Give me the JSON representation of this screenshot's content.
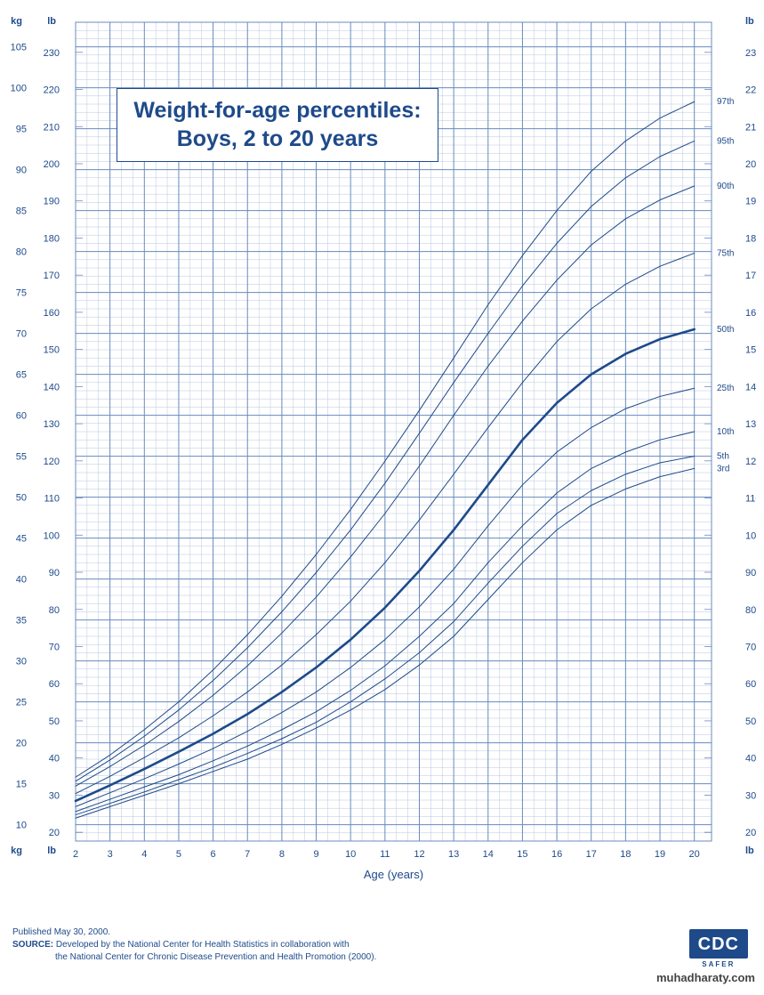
{
  "title_line1": "Weight-for-age percentiles:",
  "title_line2": "Boys, 2 to 20 years",
  "xlabel": "Age (years)",
  "axis_left_kg": "kg",
  "axis_left_lb": "lb",
  "axis_right_kg": "kg",
  "axis_right_lb": "lb",
  "line_color": "#1e4a8a",
  "grid_color_minor": "#b8c7de",
  "grid_color_major": "#6a8bbf",
  "background": "#ffffff",
  "xlim": [
    2,
    20.5
  ],
  "x_ticks": [
    2,
    3,
    4,
    5,
    6,
    7,
    8,
    9,
    10,
    11,
    12,
    13,
    14,
    15,
    16,
    17,
    18,
    19,
    20
  ],
  "kg_lim": [
    8,
    108
  ],
  "kg_ticks": [
    10,
    15,
    20,
    25,
    30,
    35,
    40,
    45,
    50,
    55,
    60,
    65,
    70,
    75,
    80,
    85,
    90,
    95,
    100,
    105
  ],
  "lb_ticks": [
    20,
    30,
    40,
    50,
    60,
    70,
    80,
    90,
    100,
    110,
    120,
    130,
    140,
    150,
    160,
    170,
    180,
    190,
    200,
    210,
    220,
    230
  ],
  "lb_per_kg": 2.2046,
  "label_fontsize": 11,
  "axislabel_fontsize": 13,
  "unit_fontsize": 11,
  "percentile_label_fontsize": 10,
  "median_line_width": 2.6,
  "other_line_width": 1.0,
  "percentiles": [
    {
      "label": "3rd",
      "data": [
        [
          2,
          10.8
        ],
        [
          3,
          12.2
        ],
        [
          4,
          13.6
        ],
        [
          5,
          15.0
        ],
        [
          6,
          16.5
        ],
        [
          7,
          18.0
        ],
        [
          8,
          19.8
        ],
        [
          9,
          21.8
        ],
        [
          10,
          24.0
        ],
        [
          11,
          26.5
        ],
        [
          12,
          29.5
        ],
        [
          13,
          33.0
        ],
        [
          14,
          37.5
        ],
        [
          15,
          42.0
        ],
        [
          16,
          46.0
        ],
        [
          17,
          49.0
        ],
        [
          18,
          51.0
        ],
        [
          19,
          52.5
        ],
        [
          20,
          53.5
        ]
      ]
    },
    {
      "label": "5th",
      "data": [
        [
          2,
          11.2
        ],
        [
          3,
          12.6
        ],
        [
          4,
          14.0
        ],
        [
          5,
          15.5
        ],
        [
          6,
          17.0
        ],
        [
          7,
          18.7
        ],
        [
          8,
          20.5
        ],
        [
          9,
          22.5
        ],
        [
          10,
          25.0
        ],
        [
          11,
          27.8
        ],
        [
          12,
          31.0
        ],
        [
          13,
          34.8
        ],
        [
          14,
          39.5
        ],
        [
          15,
          44.0
        ],
        [
          16,
          48.0
        ],
        [
          17,
          50.8
        ],
        [
          18,
          52.8
        ],
        [
          19,
          54.2
        ],
        [
          20,
          55.0
        ]
      ]
    },
    {
      "label": "10th",
      "data": [
        [
          2,
          11.6
        ],
        [
          3,
          13.1
        ],
        [
          4,
          14.6
        ],
        [
          5,
          16.1
        ],
        [
          6,
          17.8
        ],
        [
          7,
          19.6
        ],
        [
          8,
          21.6
        ],
        [
          9,
          23.8
        ],
        [
          10,
          26.4
        ],
        [
          11,
          29.4
        ],
        [
          12,
          33.0
        ],
        [
          13,
          37.0
        ],
        [
          14,
          42.0
        ],
        [
          15,
          46.5
        ],
        [
          16,
          50.5
        ],
        [
          17,
          53.5
        ],
        [
          18,
          55.5
        ],
        [
          19,
          57.0
        ],
        [
          20,
          58.0
        ]
      ]
    },
    {
      "label": "25th",
      "data": [
        [
          2,
          12.2
        ],
        [
          3,
          13.9
        ],
        [
          4,
          15.6
        ],
        [
          5,
          17.4
        ],
        [
          6,
          19.3
        ],
        [
          7,
          21.4
        ],
        [
          8,
          23.7
        ],
        [
          9,
          26.2
        ],
        [
          10,
          29.2
        ],
        [
          11,
          32.6
        ],
        [
          12,
          36.6
        ],
        [
          13,
          41.2
        ],
        [
          14,
          46.5
        ],
        [
          15,
          51.5
        ],
        [
          16,
          55.5
        ],
        [
          17,
          58.5
        ],
        [
          18,
          60.8
        ],
        [
          19,
          62.3
        ],
        [
          20,
          63.3
        ]
      ]
    },
    {
      "label": "50th",
      "data": [
        [
          2,
          12.9
        ],
        [
          3,
          14.8
        ],
        [
          4,
          16.8
        ],
        [
          5,
          18.9
        ],
        [
          6,
          21.1
        ],
        [
          7,
          23.5
        ],
        [
          8,
          26.2
        ],
        [
          9,
          29.2
        ],
        [
          10,
          32.6
        ],
        [
          11,
          36.5
        ],
        [
          12,
          41.0
        ],
        [
          13,
          46.0
        ],
        [
          14,
          51.5
        ],
        [
          15,
          57.0
        ],
        [
          16,
          61.5
        ],
        [
          17,
          65.0
        ],
        [
          18,
          67.5
        ],
        [
          19,
          69.3
        ],
        [
          20,
          70.5
        ]
      ]
    },
    {
      "label": "75th",
      "data": [
        [
          2,
          13.8
        ],
        [
          3,
          15.9
        ],
        [
          4,
          18.2
        ],
        [
          5,
          20.6
        ],
        [
          6,
          23.3
        ],
        [
          7,
          26.2
        ],
        [
          8,
          29.5
        ],
        [
          9,
          33.2
        ],
        [
          10,
          37.3
        ],
        [
          11,
          42.0
        ],
        [
          12,
          47.2
        ],
        [
          13,
          52.8
        ],
        [
          14,
          58.5
        ],
        [
          15,
          64.0
        ],
        [
          16,
          69.0
        ],
        [
          17,
          73.0
        ],
        [
          18,
          76.0
        ],
        [
          19,
          78.2
        ],
        [
          20,
          79.8
        ]
      ]
    },
    {
      "label": "90th",
      "data": [
        [
          2,
          14.7
        ],
        [
          3,
          17.1
        ],
        [
          4,
          19.7
        ],
        [
          5,
          22.6
        ],
        [
          6,
          25.8
        ],
        [
          7,
          29.4
        ],
        [
          8,
          33.4
        ],
        [
          9,
          37.8
        ],
        [
          10,
          42.7
        ],
        [
          11,
          48.0
        ],
        [
          12,
          53.8
        ],
        [
          13,
          60.0
        ],
        [
          14,
          66.0
        ],
        [
          15,
          71.5
        ],
        [
          16,
          76.5
        ],
        [
          17,
          80.8
        ],
        [
          18,
          84.0
        ],
        [
          19,
          86.3
        ],
        [
          20,
          88.0
        ]
      ]
    },
    {
      "label": "95th",
      "data": [
        [
          2,
          15.3
        ],
        [
          3,
          17.9
        ],
        [
          4,
          20.8
        ],
        [
          5,
          24.0
        ],
        [
          6,
          27.6
        ],
        [
          7,
          31.6
        ],
        [
          8,
          36.0
        ],
        [
          9,
          40.8
        ],
        [
          10,
          46.0
        ],
        [
          11,
          51.7
        ],
        [
          12,
          57.8
        ],
        [
          13,
          64.0
        ],
        [
          14,
          70.0
        ],
        [
          15,
          75.8
        ],
        [
          16,
          81.0
        ],
        [
          17,
          85.5
        ],
        [
          18,
          89.0
        ],
        [
          19,
          91.6
        ],
        [
          20,
          93.5
        ]
      ]
    },
    {
      "label": "97th",
      "data": [
        [
          2,
          15.8
        ],
        [
          3,
          18.5
        ],
        [
          4,
          21.6
        ],
        [
          5,
          25.0
        ],
        [
          6,
          28.9
        ],
        [
          7,
          33.2
        ],
        [
          8,
          37.9
        ],
        [
          9,
          43.0
        ],
        [
          10,
          48.5
        ],
        [
          11,
          54.4
        ],
        [
          12,
          60.6
        ],
        [
          13,
          67.0
        ],
        [
          14,
          73.5
        ],
        [
          15,
          79.5
        ],
        [
          16,
          85.0
        ],
        [
          17,
          89.8
        ],
        [
          18,
          93.5
        ],
        [
          19,
          96.3
        ],
        [
          20,
          98.3
        ]
      ]
    }
  ],
  "footer_published": "Published May 30, 2000.",
  "footer_source_label": "SOURCE:",
  "footer_source_line1": "Developed by the National Center for Health Statistics in collaboration with",
  "footer_source_line2": "the National Center for Chronic Disease Prevention and Health Promotion (2000).",
  "cdc_text": "CDC",
  "cdc_sub": "SAFER",
  "watermark": "muhadharaty.com"
}
